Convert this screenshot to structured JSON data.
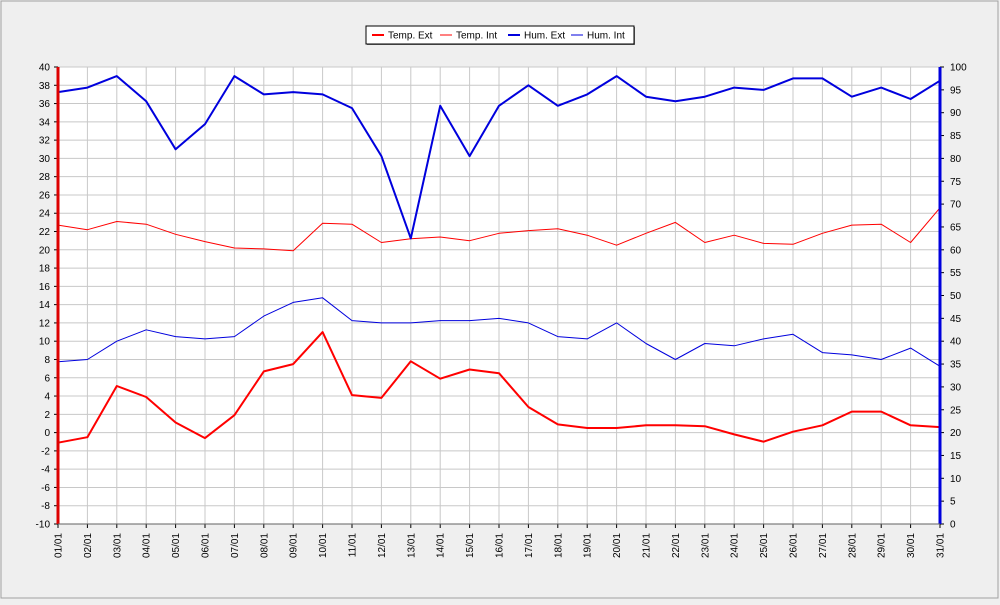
{
  "chart_data": {
    "type": "line",
    "categories": [
      "01/01",
      "02/01",
      "03/01",
      "04/01",
      "05/01",
      "06/01",
      "07/01",
      "08/01",
      "09/01",
      "10/01",
      "11/01",
      "12/01",
      "13/01",
      "14/01",
      "15/01",
      "16/01",
      "17/01",
      "18/01",
      "19/01",
      "20/01",
      "21/01",
      "22/01",
      "23/01",
      "24/01",
      "25/01",
      "26/01",
      "27/01",
      "28/01",
      "29/01",
      "30/01",
      "31/01"
    ],
    "y_left": {
      "min": -10,
      "max": 40,
      "step": 2
    },
    "y_right": {
      "min": 0,
      "max": 100,
      "step": 5
    },
    "grid": true,
    "legend_position": "top-center",
    "series": [
      {
        "name": "Temp. Ext",
        "axis": "left",
        "color": "#ff0000",
        "width": 2,
        "values": [
          -1.1,
          -0.5,
          5.1,
          3.9,
          1.1,
          -0.6,
          1.9,
          6.7,
          7.5,
          11.0,
          4.1,
          3.8,
          7.8,
          5.9,
          6.9,
          6.5,
          2.8,
          0.9,
          0.5,
          0.5,
          0.8,
          0.8,
          0.7,
          -0.2,
          -1.0,
          0.1,
          0.8,
          2.3,
          2.3,
          0.8,
          0.6
        ]
      },
      {
        "name": "Temp. Int",
        "axis": "left",
        "color": "#ff0000",
        "width": 1,
        "values": [
          22.7,
          22.2,
          23.1,
          22.8,
          21.7,
          20.9,
          20.2,
          20.1,
          19.9,
          22.9,
          22.8,
          20.8,
          21.2,
          21.4,
          21.0,
          21.8,
          22.1,
          22.3,
          21.6,
          20.5,
          21.8,
          23.0,
          20.8,
          21.6,
          20.7,
          20.6,
          21.8,
          22.7,
          22.8,
          20.8,
          24.6
        ]
      },
      {
        "name": "Hum. Ext",
        "axis": "right",
        "color": "#0000dd",
        "width": 2,
        "values": [
          94.5,
          95.5,
          98.0,
          92.5,
          82.0,
          87.5,
          98.0,
          94.0,
          94.5,
          94.0,
          91.0,
          80.5,
          62.5,
          91.5,
          80.5,
          91.5,
          96.0,
          91.5,
          94.0,
          98.0,
          93.5,
          92.5,
          93.5,
          95.5,
          95.0,
          97.5,
          97.5,
          93.5,
          95.5,
          93.0,
          97.0
        ]
      },
      {
        "name": "Hum. Int",
        "axis": "right",
        "color": "#0000dd",
        "width": 1,
        "values": [
          35.5,
          36.0,
          40.0,
          42.5,
          41.0,
          40.5,
          41.0,
          45.5,
          48.5,
          49.5,
          44.5,
          44.0,
          44.0,
          44.5,
          44.5,
          45.0,
          44.0,
          41.0,
          40.5,
          44.0,
          39.5,
          36.0,
          39.5,
          39.0,
          40.5,
          41.5,
          37.5,
          37.0,
          36.0,
          38.5,
          34.5
        ]
      }
    ]
  }
}
